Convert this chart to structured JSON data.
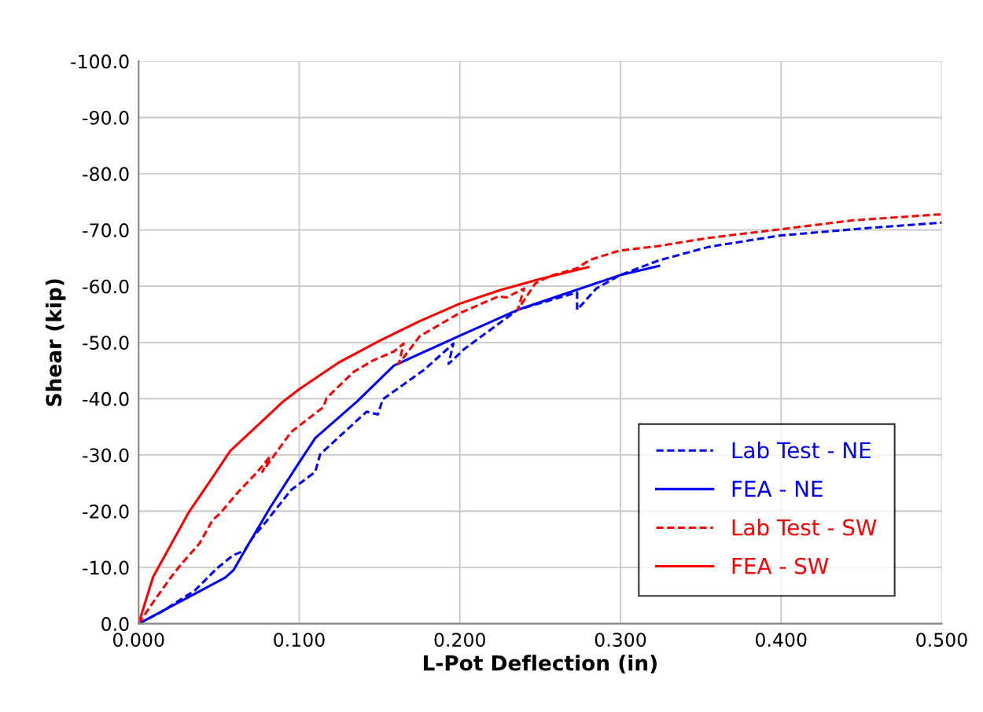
{
  "chart_data": {
    "type": "line",
    "xlabel": "L-Pot Deflection (in)",
    "ylabel": "Shear (kip)",
    "xlim": [
      0,
      0.5
    ],
    "ylim": [
      0,
      -100
    ],
    "xticks": [
      {
        "value": 0,
        "label": "0.000"
      },
      {
        "value": 0.1,
        "label": "0.100"
      },
      {
        "value": 0.2,
        "label": "0.200"
      },
      {
        "value": 0.3,
        "label": "0.300"
      },
      {
        "value": 0.4,
        "label": "0.400"
      },
      {
        "value": 0.5,
        "label": "0.500"
      }
    ],
    "yticks": [
      {
        "value": 0,
        "label": "0.0"
      },
      {
        "value": -10,
        "label": "-10.0"
      },
      {
        "value": -20,
        "label": "-20.0"
      },
      {
        "value": -30,
        "label": "-30.0"
      },
      {
        "value": -40,
        "label": "-40.0"
      },
      {
        "value": -50,
        "label": "-50.0"
      },
      {
        "value": -60,
        "label": "-60.0"
      },
      {
        "value": -70,
        "label": "-70.0"
      },
      {
        "value": -80,
        "label": "-80.0"
      },
      {
        "value": -90,
        "label": "-90.0"
      },
      {
        "value": -100,
        "label": "-100.0"
      }
    ],
    "grid": true,
    "legend": "bottom right",
    "marker": "none",
    "series": [
      {
        "name": "Lab Test - NE",
        "color": "#0000ff",
        "line_style": "dashed",
        "x": [
          0,
          0.013,
          0.035,
          0.049,
          0.059,
          0.066,
          0.071,
          0.079,
          0.082,
          0.095,
          0.11,
          0.113,
          0.124,
          0.142,
          0.149,
          0.152,
          0.178,
          0.196,
          0.193,
          0.203,
          0.224,
          0.236,
          0.273,
          0.273,
          0.285,
          0.3,
          0.324,
          0.355,
          0.399,
          0.452,
          0.5
        ],
        "values": [
          0,
          -1.9,
          -5.9,
          -9.9,
          -12.2,
          -13,
          -15.3,
          -18,
          -19.1,
          -23.8,
          -27,
          -30.1,
          -33,
          -37.7,
          -37.2,
          -39.9,
          -45.2,
          -49.8,
          -46.2,
          -48.9,
          -53.3,
          -55.8,
          -58.9,
          -55.8,
          -59.6,
          -62,
          -64.6,
          -67,
          -69,
          -70.3,
          -71.3
        ]
      },
      {
        "name": "FEA - NE",
        "color": "#0000ff",
        "line_style": "solid",
        "x": [
          0,
          0.054,
          0.059,
          0.069,
          0.082,
          0.098,
          0.11,
          0.136,
          0.159,
          0.2,
          0.236,
          0.3,
          0.324
        ],
        "values": [
          0,
          -8.2,
          -9.5,
          -14.4,
          -20.7,
          -27.8,
          -33,
          -39.5,
          -45.9,
          -51.2,
          -55.8,
          -62,
          -63.6
        ]
      },
      {
        "name": "Lab Test - SW",
        "color": "#ff0000",
        "line_style": "dashed",
        "x": [
          0,
          0.01,
          0.02,
          0.026,
          0.038,
          0.046,
          0.051,
          0.062,
          0.074,
          0.082,
          0.077,
          0.095,
          0.115,
          0.117,
          0.134,
          0.146,
          0.159,
          0.165,
          0.162,
          0.175,
          0.199,
          0.224,
          0.229,
          0.24,
          0.236,
          0.247,
          0.257,
          0.273,
          0.281,
          0.299,
          0.325,
          0.355,
          0.399,
          0.444,
          0.5
        ],
        "values": [
          0,
          -4.2,
          -8.2,
          -10.4,
          -14.3,
          -18.4,
          -19.7,
          -23.4,
          -27,
          -29.8,
          -27,
          -34.1,
          -38.5,
          -40.1,
          -44.8,
          -46.8,
          -48.4,
          -49.8,
          -46.2,
          -51.1,
          -55.1,
          -58.2,
          -58,
          -59.6,
          -55.8,
          -60.5,
          -61.9,
          -63.2,
          -64.7,
          -66.3,
          -67.2,
          -68.6,
          -70.1,
          -71.7,
          -72.8
        ]
      },
      {
        "name": "FEA - SW",
        "color": "#ff0000",
        "line_style": "solid",
        "x": [
          0,
          0.009,
          0.031,
          0.046,
          0.057,
          0.075,
          0.09,
          0.1,
          0.125,
          0.15,
          0.175,
          0.2,
          0.225,
          0.25,
          0.28
        ],
        "values": [
          0,
          -8.3,
          -19.7,
          -26,
          -30.7,
          -35.5,
          -39.5,
          -41.7,
          -46.5,
          -50.3,
          -53.8,
          -56.9,
          -59.3,
          -61.3,
          -63.4
        ]
      }
    ]
  }
}
